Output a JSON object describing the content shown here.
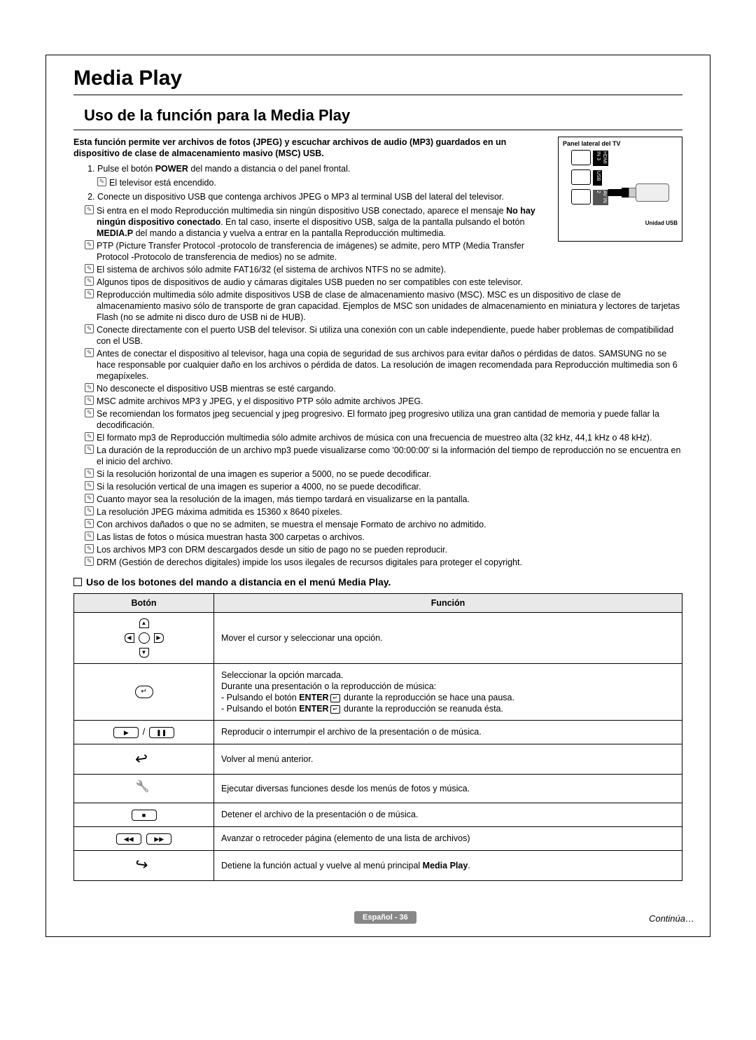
{
  "title": "Media Play",
  "subtitle": "Uso de la función para la Media Play",
  "intro": "Esta función permite ver archivos de fotos (JPEG) y escuchar archivos de audio (MP3) guardados en un dispositivo de clase de almacenamiento masivo (MSC) USB.",
  "side_panel": {
    "label": "Panel lateral del TV",
    "usb_label": "Unidad USB",
    "ports": [
      "HDMI IN 3",
      "USB",
      "AV IN 2"
    ]
  },
  "steps": [
    "Pulse el botón <b>POWER</b> del mando a distancia o del panel frontal.",
    "Conecte un dispositivo USB que contenga archivos JPEG o MP3 al terminal USB del lateral del televisor."
  ],
  "step1_note": "El televisor está encendido.",
  "notes": [
    "Si entra en el modo Reproducción multimedia sin ningún dispositivo USB conectado, aparece el mensaje <b>No hay ningún dispositivo conectado</b>. En tal caso, inserte el dispositivo USB, salga de la pantalla pulsando el botón <b>MEDIA.P</b> del mando a distancia y vuelva a entrar en la pantalla Reproducción multimedia.",
    "PTP (Picture Transfer Protocol -protocolo de transferencia de imágenes) se admite, pero MTP (Media Transfer Protocol -Protocolo de transferencia de medios) no se admite.",
    "El sistema de archivos sólo admite FAT16/32 (el sistema de archivos NTFS no se admite).",
    "Algunos tipos de dispositivos de audio y cámaras digitales USB pueden no ser compatibles con este televisor.",
    "Reproducción multimedia sólo admite dispositivos USB de clase de almacenamiento masivo (MSC). MSC es un dispositivo de clase de almacenamiento masivo sólo de transporte de gran capacidad. Ejemplos de MSC son unidades de almacenamiento en miniatura y lectores de tarjetas Flash (no se admite ni disco duro de USB ni de HUB).",
    "Conecte directamente con el puerto USB del televisor. Si utiliza una conexión con un cable independiente, puede haber problemas de compatibilidad con el USB.",
    "Antes de conectar el dispositivo al televisor, haga una copia de seguridad de sus archivos para evitar daños o pérdidas de datos. SAMSUNG no se hace responsable por cualquier daño en los archivos o pérdida de datos. La resolución de imagen recomendada para Reproducción multimedia son 6 megapíxeles.",
    "No desconecte el dispositivo USB mientras se esté cargando.",
    "MSC admite archivos MP3 y JPEG, y el dispositivo PTP sólo admite archivos JPEG.",
    "Se recomiendan los formatos jpeg secuencial y jpeg progresivo. El formato jpeg progresivo utiliza una gran cantidad de memoria y puede fallar la decodificación.",
    "El formato mp3 de Reproducción multimedia sólo admite archivos de música con una frecuencia de muestreo alta (32 kHz, 44,1 kHz o 48 kHz).",
    "La duración de la reproducción de un archivo mp3 puede visualizarse como '00:00:00' si la información del tiempo de reproducción no se encuentra en el inicio del archivo.",
    "Si la resolución horizontal de una imagen es superior a 5000, no se puede decodificar.",
    "Si la resolución vertical de una imagen es superior a 4000, no se puede decodificar.",
    "Cuanto mayor sea la resolución de la imagen, más tiempo tardará en visualizarse en la pantalla.",
    "La resolución JPEG máxima admitida es 15360 x 8640 píxeles.",
    "Con archivos dañados o que no se admiten, se muestra el mensaje Formato de archivo no admitido.",
    "Las listas de fotos o música muestran hasta 300 carpetas o archivos.",
    "Los archivos MP3 con DRM descargados desde un sitio de pago no se pueden reproducir.",
    "DRM (Gestión de derechos digitales) impide los usos ilegales de recursos digitales para proteger el copyright."
  ],
  "notes_narrow_count": 2,
  "table_heading": "Uso de los botones del mando a distancia en el menú Media Play.",
  "table": {
    "col_button": "Botón",
    "col_function": "Función",
    "rows": [
      {
        "btn": "dpad",
        "func": "Mover el cursor y seleccionar una opción."
      },
      {
        "btn": "enter",
        "func": "Seleccionar la opción marcada.<br>Durante una presentación o la reproducción de música:<br>- Pulsando el botón <b>ENTER</b><span class='enter-icon'>↵</span> durante la reproducción se hace una pausa.<br>- Pulsando el botón <b>ENTER</b><span class='enter-icon'>↵</span> durante la reproducción se reanuda ésta."
      },
      {
        "btn": "playpause",
        "func": "Reproducir o interrumpir el archivo de la presentación o de música."
      },
      {
        "btn": "return",
        "func": "Volver al menú anterior."
      },
      {
        "btn": "tools",
        "func": "Ejecutar diversas funciones desde los menús de fotos y música."
      },
      {
        "btn": "stop",
        "func": "Detener el archivo de la presentación o de música."
      },
      {
        "btn": "rewff",
        "func": "Avanzar o retroceder página (elemento de una lista de archivos)"
      },
      {
        "btn": "exit",
        "func": "Detiene la función actual y vuelve al menú principal <b>Media Play</b>."
      }
    ]
  },
  "footer": {
    "lang_page": "Español - 36",
    "continua": "Continúa…"
  }
}
